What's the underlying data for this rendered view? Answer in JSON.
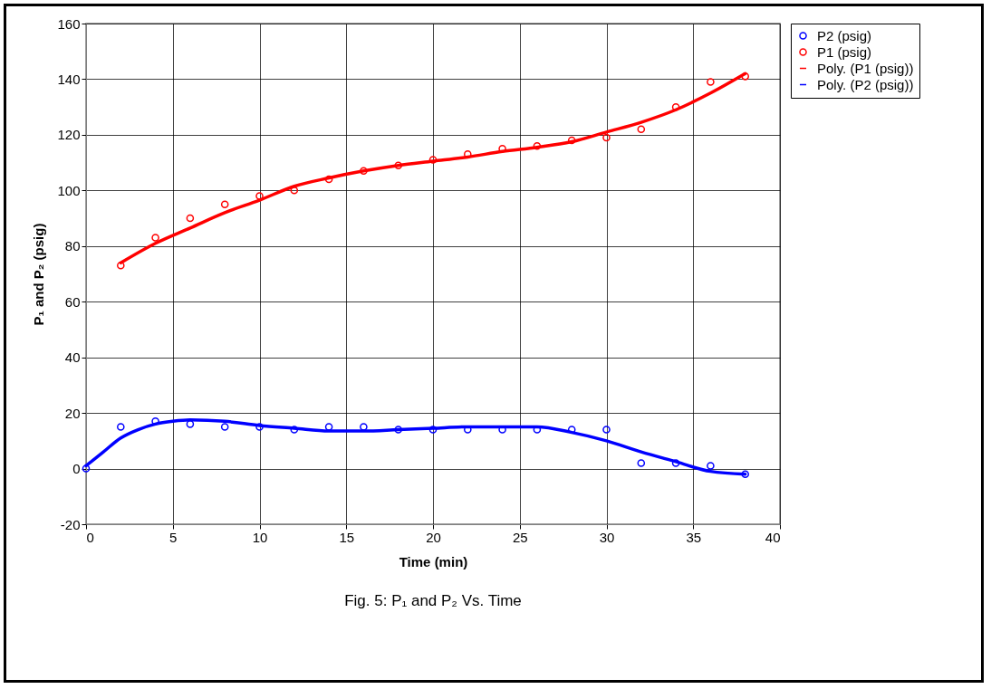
{
  "chart_data": {
    "type": "scatter",
    "title": "Fig. 5: P₁ and P₂ Vs. Time",
    "xlabel": "Time (min)",
    "ylabel": "P₁ and P₂ (psig)",
    "xlim": [
      0,
      40
    ],
    "xticks": [
      0,
      5,
      10,
      15,
      20,
      25,
      30,
      35,
      40
    ],
    "ylim": [
      -20,
      160
    ],
    "yticks": [
      -20,
      0,
      20,
      40,
      60,
      80,
      100,
      120,
      140,
      160
    ],
    "grid": true,
    "legend": "right",
    "series": [
      {
        "name": "P2 (psig)",
        "marker": "circle",
        "color": "#0000ff",
        "x": [
          0,
          2,
          4,
          6,
          8,
          10,
          12,
          14,
          16,
          18,
          20,
          22,
          24,
          26,
          28,
          30,
          32,
          34,
          36,
          38
        ],
        "values": [
          0,
          15,
          17,
          16,
          15,
          15,
          14,
          15,
          15,
          14,
          14,
          14,
          14,
          14,
          14,
          14,
          2,
          2,
          1,
          -2
        ]
      },
      {
        "name": "P1 (psig)",
        "marker": "circle",
        "color": "#ff0000",
        "x": [
          2,
          4,
          6,
          8,
          10,
          12,
          14,
          16,
          18,
          20,
          22,
          24,
          26,
          28,
          30,
          32,
          34,
          36,
          38
        ],
        "values": [
          73,
          83,
          90,
          95,
          98,
          100,
          104,
          107,
          109,
          111,
          113,
          115,
          116,
          118,
          119,
          122,
          130,
          139,
          141
        ]
      },
      {
        "name": "Poly. (P1 (psig))",
        "type": "line",
        "marker": "none",
        "line_style": "solid",
        "color": "#ff0000",
        "x": [
          2,
          4,
          6,
          8,
          10,
          12,
          14,
          16,
          18,
          20,
          22,
          24,
          26,
          28,
          30,
          32,
          34,
          36,
          38
        ],
        "values": [
          74,
          81,
          86.5,
          92,
          96.5,
          101.5,
          104.5,
          107,
          109,
          110.5,
          112,
          114,
          115.5,
          117.5,
          121,
          124.5,
          129,
          135,
          142
        ]
      },
      {
        "name": "Poly. (P2 (psig))",
        "type": "line",
        "marker": "none",
        "line_style": "solid",
        "color": "#0000ff",
        "x": [
          0,
          1,
          2,
          3,
          4,
          5,
          6,
          8,
          10,
          12,
          14,
          16,
          18,
          20,
          22,
          24,
          26,
          28,
          30,
          32,
          34,
          36,
          38
        ],
        "values": [
          1,
          6,
          11,
          14,
          16,
          17,
          17.5,
          17,
          15.5,
          14.5,
          13.5,
          13.5,
          14,
          14.5,
          15,
          15,
          15,
          13,
          10,
          6,
          2.5,
          -1,
          -2
        ]
      }
    ]
  }
}
